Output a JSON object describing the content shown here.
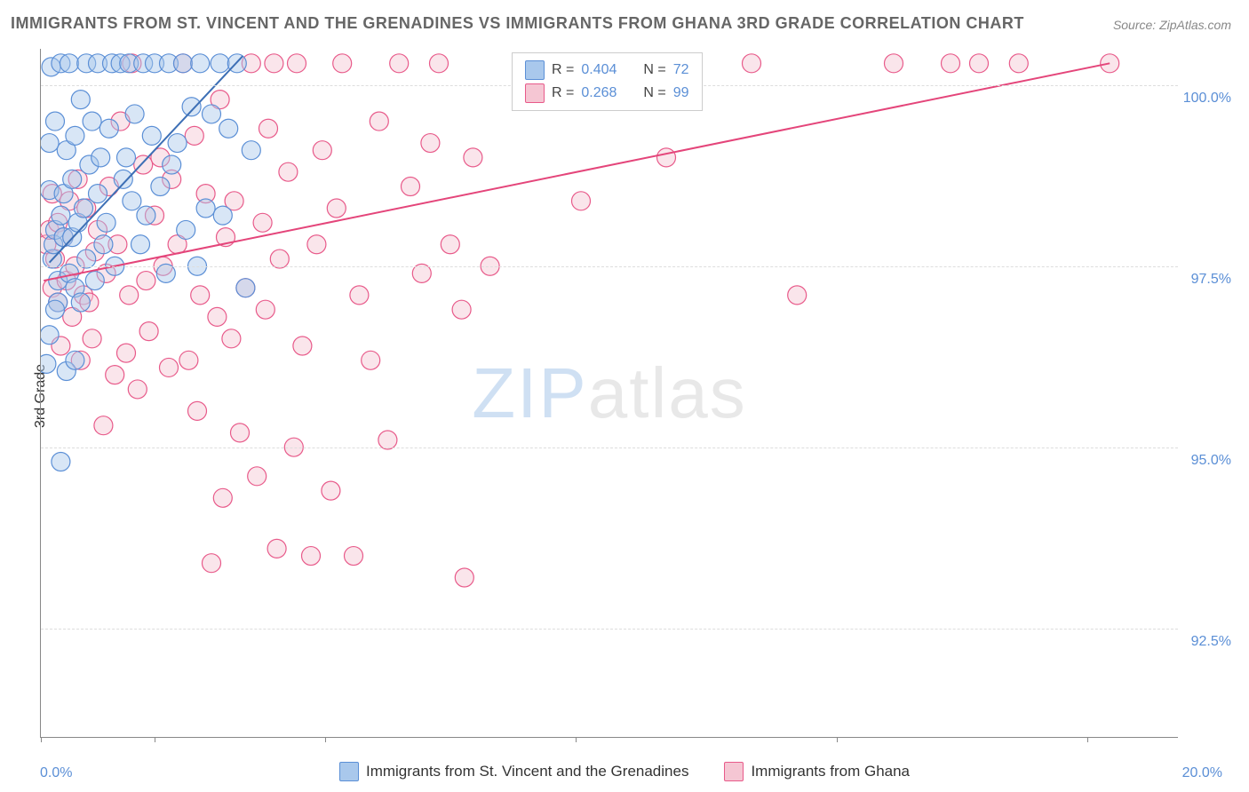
{
  "title": "IMMIGRANTS FROM ST. VINCENT AND THE GRENADINES VS IMMIGRANTS FROM GHANA 3RD GRADE CORRELATION CHART",
  "source": "Source: ZipAtlas.com",
  "ylabel": "3rd Grade",
  "watermark": {
    "part1": "ZIP",
    "part2": "atlas"
  },
  "chart": {
    "type": "scatter",
    "xlim": [
      0,
      20
    ],
    "ylim": [
      91,
      100.5
    ],
    "xtick_labels": {
      "left": "0.0%",
      "right": "20.0%"
    },
    "xtick_positions_pct": [
      0,
      10,
      25,
      47,
      70,
      92
    ],
    "ytick_labels": [
      "92.5%",
      "95.0%",
      "97.5%",
      "100.0%"
    ],
    "ytick_values": [
      92.5,
      95.0,
      97.5,
      100.0
    ],
    "grid_color": "#dddddd",
    "background_color": "#ffffff",
    "marker_radius": 10.5,
    "marker_opacity": 0.45,
    "line_width": 2
  },
  "series": [
    {
      "name": "Immigrants from St. Vincent and the Grenadines",
      "color_fill": "#a9c8ec",
      "color_stroke": "#5b8fd6",
      "line_color": "#3d6fb5",
      "R": "0.404",
      "N": "72",
      "trend": {
        "x1": 0.15,
        "y1": 97.55,
        "x2": 3.55,
        "y2": 100.4
      },
      "points": [
        [
          0.1,
          96.15
        ],
        [
          0.15,
          96.55
        ],
        [
          0.15,
          98.55
        ],
        [
          0.18,
          100.25
        ],
        [
          0.2,
          97.6
        ],
        [
          0.22,
          97.8
        ],
        [
          0.25,
          99.5
        ],
        [
          0.25,
          98.0
        ],
        [
          0.3,
          97.0
        ],
        [
          0.3,
          97.3
        ],
        [
          0.35,
          98.2
        ],
        [
          0.35,
          100.3
        ],
        [
          0.4,
          97.9
        ],
        [
          0.4,
          98.5
        ],
        [
          0.45,
          96.05
        ],
        [
          0.45,
          99.1
        ],
        [
          0.5,
          97.4
        ],
        [
          0.5,
          100.3
        ],
        [
          0.55,
          97.9
        ],
        [
          0.55,
          98.7
        ],
        [
          0.6,
          99.3
        ],
        [
          0.6,
          97.2
        ],
        [
          0.65,
          98.1
        ],
        [
          0.7,
          97.0
        ],
        [
          0.7,
          99.8
        ],
        [
          0.75,
          98.3
        ],
        [
          0.8,
          100.3
        ],
        [
          0.8,
          97.6
        ],
        [
          0.85,
          98.9
        ],
        [
          0.9,
          99.5
        ],
        [
          0.95,
          97.3
        ],
        [
          1.0,
          100.3
        ],
        [
          1.0,
          98.5
        ],
        [
          1.05,
          99.0
        ],
        [
          1.1,
          97.8
        ],
        [
          1.15,
          98.1
        ],
        [
          1.2,
          99.4
        ],
        [
          1.25,
          100.3
        ],
        [
          1.3,
          97.5
        ],
        [
          1.4,
          100.3
        ],
        [
          1.45,
          98.7
        ],
        [
          1.5,
          99.0
        ],
        [
          1.55,
          100.3
        ],
        [
          1.6,
          98.4
        ],
        [
          1.65,
          99.6
        ],
        [
          1.75,
          97.8
        ],
        [
          1.8,
          100.3
        ],
        [
          1.85,
          98.2
        ],
        [
          1.95,
          99.3
        ],
        [
          2.0,
          100.3
        ],
        [
          2.1,
          98.6
        ],
        [
          2.2,
          97.4
        ],
        [
          2.25,
          100.3
        ],
        [
          2.3,
          98.9
        ],
        [
          2.4,
          99.2
        ],
        [
          2.5,
          100.3
        ],
        [
          2.55,
          98.0
        ],
        [
          2.65,
          99.7
        ],
        [
          2.75,
          97.5
        ],
        [
          2.8,
          100.3
        ],
        [
          2.9,
          98.3
        ],
        [
          3.0,
          99.6
        ],
        [
          3.15,
          100.3
        ],
        [
          3.2,
          98.2
        ],
        [
          3.3,
          99.4
        ],
        [
          3.45,
          100.3
        ],
        [
          3.6,
          97.2
        ],
        [
          3.7,
          99.1
        ],
        [
          0.35,
          94.8
        ],
        [
          0.15,
          99.2
        ],
        [
          0.6,
          96.2
        ],
        [
          0.25,
          96.9
        ]
      ]
    },
    {
      "name": "Immigrants from Ghana",
      "color_fill": "#f5c6d3",
      "color_stroke": "#e85a8a",
      "line_color": "#e4457a",
      "R": "0.268",
      "N": "99",
      "trend": {
        "x1": 0.05,
        "y1": 97.3,
        "x2": 18.8,
        "y2": 100.3
      },
      "points": [
        [
          0.1,
          97.8
        ],
        [
          0.15,
          98.0
        ],
        [
          0.2,
          97.2
        ],
        [
          0.2,
          98.5
        ],
        [
          0.25,
          97.6
        ],
        [
          0.3,
          97.0
        ],
        [
          0.3,
          98.1
        ],
        [
          0.35,
          96.4
        ],
        [
          0.4,
          97.9
        ],
        [
          0.45,
          97.3
        ],
        [
          0.5,
          98.4
        ],
        [
          0.55,
          96.8
        ],
        [
          0.6,
          97.5
        ],
        [
          0.65,
          98.7
        ],
        [
          0.7,
          96.2
        ],
        [
          0.75,
          97.1
        ],
        [
          0.8,
          98.3
        ],
        [
          0.85,
          97.0
        ],
        [
          0.9,
          96.5
        ],
        [
          0.95,
          97.7
        ],
        [
          1.0,
          98.0
        ],
        [
          1.1,
          95.3
        ],
        [
          1.15,
          97.4
        ],
        [
          1.2,
          98.6
        ],
        [
          1.3,
          96.0
        ],
        [
          1.35,
          97.8
        ],
        [
          1.4,
          99.5
        ],
        [
          1.5,
          96.3
        ],
        [
          1.55,
          97.1
        ],
        [
          1.6,
          100.3
        ],
        [
          1.7,
          95.8
        ],
        [
          1.8,
          98.9
        ],
        [
          1.85,
          97.3
        ],
        [
          1.9,
          96.6
        ],
        [
          2.0,
          98.2
        ],
        [
          2.1,
          99.0
        ],
        [
          2.15,
          97.5
        ],
        [
          2.25,
          96.1
        ],
        [
          2.3,
          98.7
        ],
        [
          2.4,
          97.8
        ],
        [
          2.5,
          100.3
        ],
        [
          2.6,
          96.2
        ],
        [
          2.7,
          99.3
        ],
        [
          2.75,
          95.5
        ],
        [
          2.8,
          97.1
        ],
        [
          2.9,
          98.5
        ],
        [
          3.0,
          93.4
        ],
        [
          3.1,
          96.8
        ],
        [
          3.15,
          99.8
        ],
        [
          3.2,
          94.3
        ],
        [
          3.25,
          97.9
        ],
        [
          3.35,
          96.5
        ],
        [
          3.4,
          98.4
        ],
        [
          3.5,
          95.2
        ],
        [
          3.6,
          97.2
        ],
        [
          3.7,
          100.3
        ],
        [
          3.8,
          94.6
        ],
        [
          3.9,
          98.1
        ],
        [
          3.95,
          96.9
        ],
        [
          4.0,
          99.4
        ],
        [
          4.1,
          100.3
        ],
        [
          4.15,
          93.6
        ],
        [
          4.2,
          97.6
        ],
        [
          4.35,
          98.8
        ],
        [
          4.45,
          95.0
        ],
        [
          4.5,
          100.3
        ],
        [
          4.6,
          96.4
        ],
        [
          4.75,
          93.5
        ],
        [
          4.85,
          97.8
        ],
        [
          4.95,
          99.1
        ],
        [
          5.1,
          94.4
        ],
        [
          5.2,
          98.3
        ],
        [
          5.3,
          100.3
        ],
        [
          5.5,
          93.5
        ],
        [
          5.6,
          97.1
        ],
        [
          5.8,
          96.2
        ],
        [
          5.95,
          99.5
        ],
        [
          6.1,
          95.1
        ],
        [
          6.3,
          100.3
        ],
        [
          6.5,
          98.6
        ],
        [
          6.7,
          97.4
        ],
        [
          6.85,
          99.2
        ],
        [
          7.0,
          100.3
        ],
        [
          7.2,
          97.8
        ],
        [
          7.4,
          96.9
        ],
        [
          7.45,
          93.2
        ],
        [
          7.6,
          99.0
        ],
        [
          7.9,
          97.5
        ],
        [
          8.8,
          100.3
        ],
        [
          9.5,
          98.4
        ],
        [
          10.0,
          100.3
        ],
        [
          11.0,
          99.0
        ],
        [
          12.5,
          100.3
        ],
        [
          13.3,
          97.1
        ],
        [
          15.0,
          100.3
        ],
        [
          16.0,
          100.3
        ],
        [
          16.5,
          100.3
        ],
        [
          17.2,
          100.3
        ],
        [
          18.8,
          100.3
        ]
      ]
    }
  ],
  "legend_stats": {
    "R_label": "R =",
    "N_label": "N ="
  },
  "bottom_legend": [
    "Immigrants from St. Vincent and the Grenadines",
    "Immigrants from Ghana"
  ]
}
